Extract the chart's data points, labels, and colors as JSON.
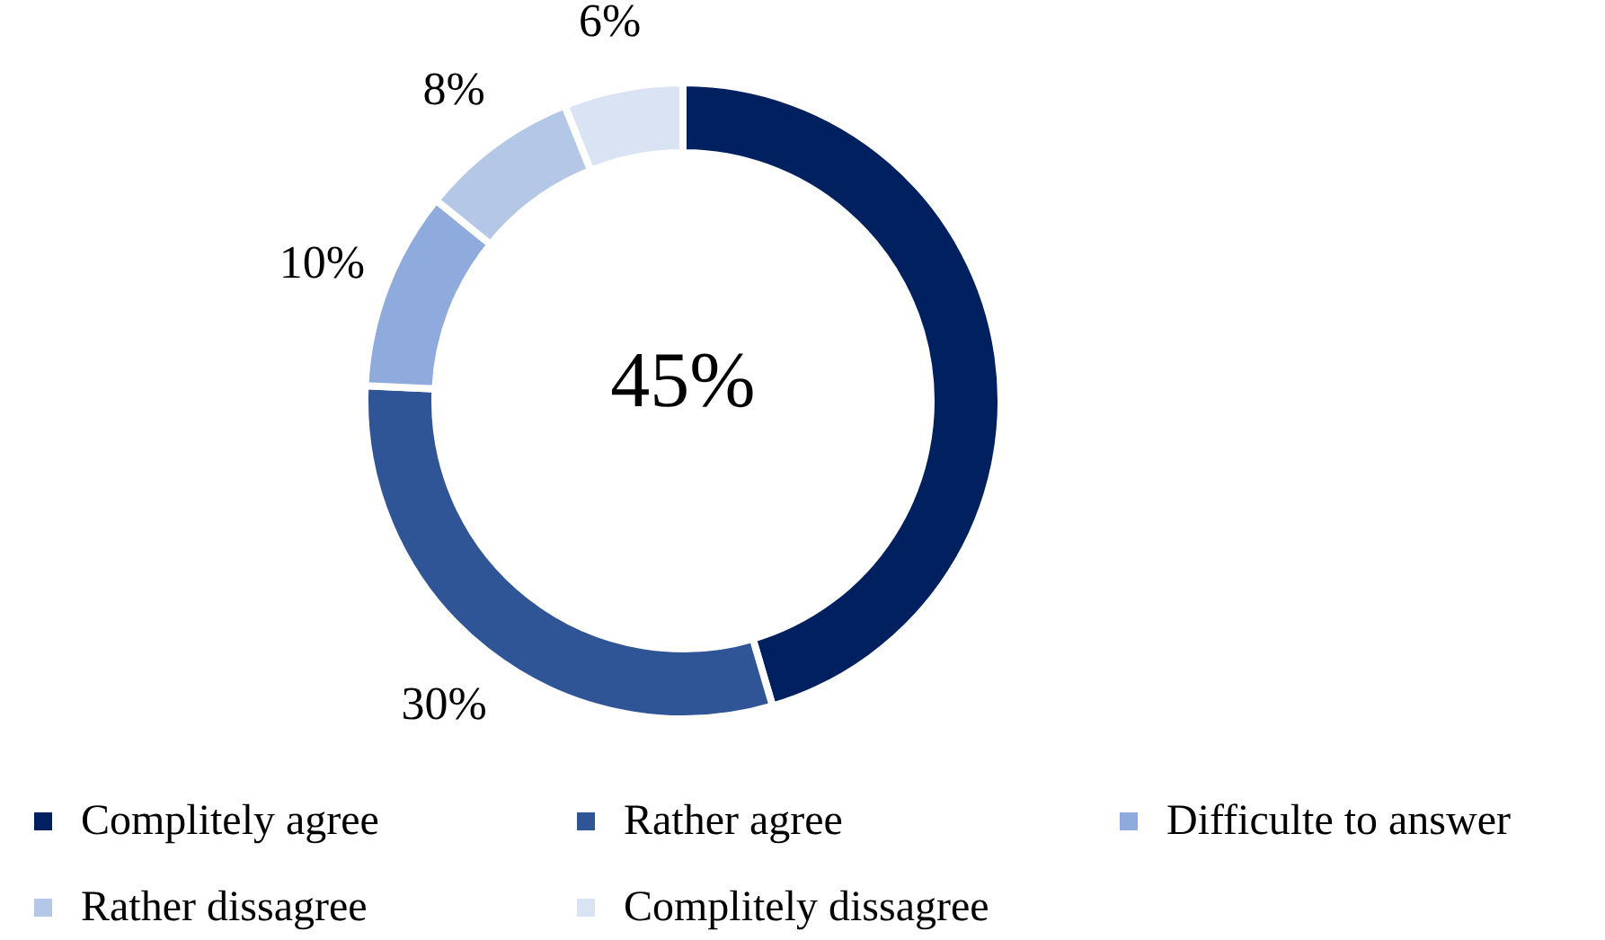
{
  "chart_data": {
    "type": "donut",
    "categories": [
      "Complitely agree",
      "Rather agree",
      "Difficulte to answer",
      "Rather dissagree",
      "Complitely dissagree"
    ],
    "values": [
      45,
      30,
      10,
      8,
      6
    ],
    "colors": [
      "#002060",
      "#2f5597",
      "#8faadc",
      "#b4c7e7",
      "#dae3f3"
    ],
    "value_labels": [
      null,
      "30%",
      "10%",
      "8%",
      "6%"
    ],
    "annotations": [
      "45%"
    ],
    "legend": "bottom"
  }
}
